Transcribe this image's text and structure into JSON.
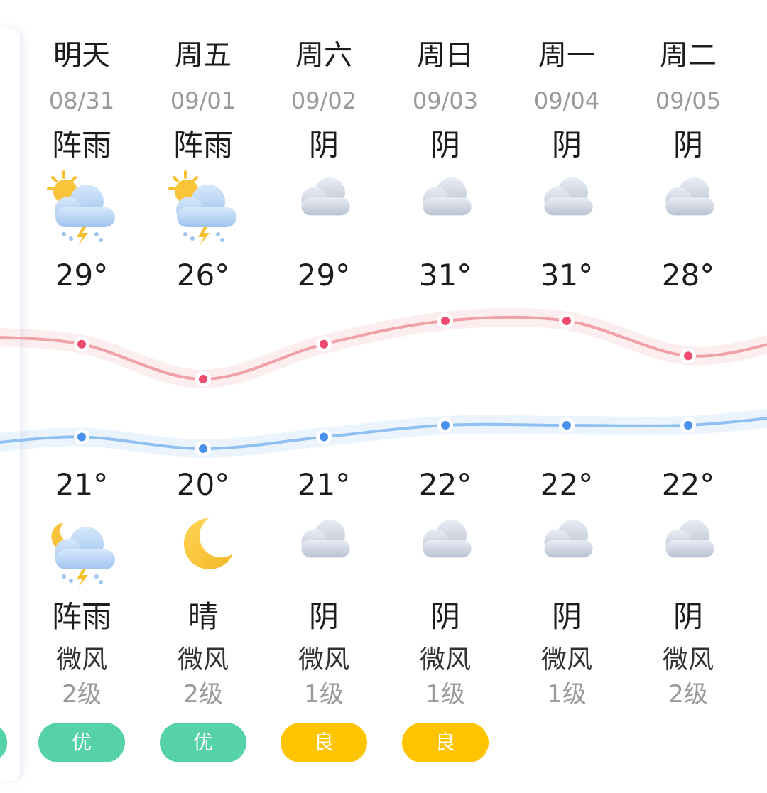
{
  "colors": {
    "high_line": "#f0a0a6",
    "high_dot": "#ef4b6e",
    "low_line": "#8ec0f2",
    "low_dot": "#4a90ee",
    "aqi_good": "#56d3a6",
    "aqi_moderate": "#ffc400"
  },
  "left_partial_aqi": {
    "color": "#56d3a6"
  },
  "days": [
    {
      "day": "明天",
      "date": "08/31",
      "cond_day": "阵雨",
      "icon_day": "sun-cloud-thunder-rain-icon",
      "high": "29°",
      "low": "21°",
      "icon_night": "moon-cloud-thunder-rain-icon",
      "cond_night": "阵雨",
      "wind": "微风",
      "level": "2级",
      "aqi": {
        "label": "优",
        "color": "#56d3a6"
      }
    },
    {
      "day": "周五",
      "date": "09/01",
      "cond_day": "阵雨",
      "icon_day": "sun-cloud-thunder-rain-icon",
      "high": "26°",
      "low": "20°",
      "icon_night": "moon-icon",
      "cond_night": "晴",
      "wind": "微风",
      "level": "2级",
      "aqi": {
        "label": "优",
        "color": "#56d3a6"
      }
    },
    {
      "day": "周六",
      "date": "09/02",
      "cond_day": "阴",
      "icon_day": "cloud-icon",
      "high": "29°",
      "low": "21°",
      "icon_night": "cloud-icon",
      "cond_night": "阴",
      "wind": "微风",
      "level": "1级",
      "aqi": {
        "label": "良",
        "color": "#ffc400"
      }
    },
    {
      "day": "周日",
      "date": "09/03",
      "cond_day": "阴",
      "icon_day": "cloud-icon",
      "high": "31°",
      "low": "22°",
      "icon_night": "cloud-icon",
      "cond_night": "阴",
      "wind": "微风",
      "level": "1级",
      "aqi": {
        "label": "良",
        "color": "#ffc400"
      }
    },
    {
      "day": "周一",
      "date": "09/04",
      "cond_day": "阴",
      "icon_day": "cloud-icon",
      "high": "31°",
      "low": "22°",
      "icon_night": "cloud-icon",
      "cond_night": "阴",
      "wind": "微风",
      "level": "1级",
      "aqi": null
    },
    {
      "day": "周二",
      "date": "09/05",
      "cond_day": "阴",
      "icon_day": "cloud-icon",
      "high": "28°",
      "low": "22°",
      "icon_night": "cloud-icon",
      "cond_night": "阴",
      "wind": "微风",
      "level": "2级",
      "aqi": null
    }
  ],
  "chart_data": {
    "type": "line",
    "x": [
      "明天",
      "周五",
      "周六",
      "周日",
      "周一",
      "周二"
    ],
    "series": [
      {
        "values": [
          29,
          26,
          29,
          31,
          31,
          28
        ]
      },
      {
        "values": [
          21,
          20,
          21,
          22,
          22,
          22
        ]
      }
    ]
  }
}
